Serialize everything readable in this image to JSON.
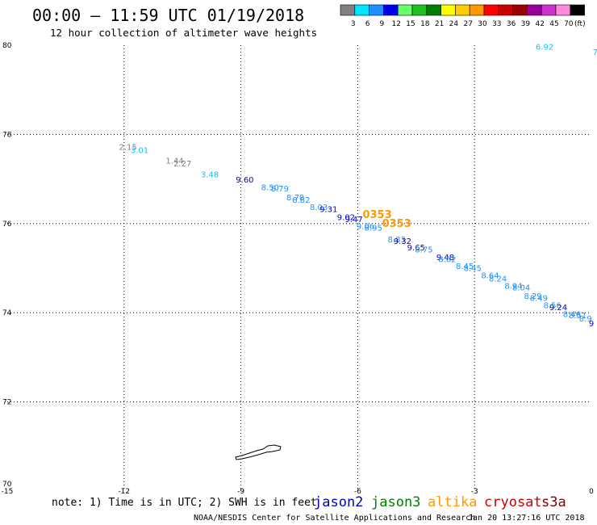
{
  "header": {
    "title": "00:00 – 11:59 UTC 01/19/2018",
    "subtitle": "12 hour collection of altimeter wave heights"
  },
  "colorbar": {
    "unit": "(ft)",
    "segments": [
      {
        "color": "#808080",
        "label": "3"
      },
      {
        "color": "#00e5ff",
        "label": "6"
      },
      {
        "color": "#1e90ff",
        "label": "9"
      },
      {
        "color": "#0000ee",
        "label": "12"
      },
      {
        "color": "#66ff66",
        "label": "15"
      },
      {
        "color": "#22c022",
        "label": "18"
      },
      {
        "color": "#008000",
        "label": "21"
      },
      {
        "color": "#ffff00",
        "label": "24"
      },
      {
        "color": "#ffcc00",
        "label": "27"
      },
      {
        "color": "#ff9900",
        "label": "30"
      },
      {
        "color": "#ff0000",
        "label": "33"
      },
      {
        "color": "#cc0000",
        "label": "36"
      },
      {
        "color": "#990000",
        "label": "39"
      },
      {
        "color": "#990099",
        "label": "42"
      },
      {
        "color": "#cc33cc",
        "label": "45"
      },
      {
        "color": "#ff88dd",
        "label": "70"
      },
      {
        "color": "#000000",
        "label": ""
      }
    ]
  },
  "chart_data": {
    "type": "scatter",
    "xlim": [
      -15,
      0
    ],
    "ylim": [
      70,
      80
    ],
    "x_ticks": [
      -15,
      -12,
      -9,
      -6,
      -3,
      0
    ],
    "y_ticks": [
      70,
      72,
      74,
      76,
      78,
      80
    ],
    "x_tick_labels": [
      "-15",
      "-12",
      "-9",
      "-6",
      "-3",
      "0"
    ],
    "y_tick_labels": [
      "70",
      "72",
      "74",
      "76",
      "78",
      "80"
    ],
    "grid": true,
    "points": [
      {
        "lon": -11.9,
        "lat": 77.65,
        "value": "2.15",
        "color": "#808080"
      },
      {
        "lon": -11.6,
        "lat": 77.58,
        "value": "3.01",
        "color": "#00c8ff"
      },
      {
        "lon": -10.7,
        "lat": 77.35,
        "value": "1.44",
        "color": "#808080"
      },
      {
        "lon": -10.5,
        "lat": 77.28,
        "value": "2.27",
        "color": "#808080"
      },
      {
        "lon": -9.8,
        "lat": 77.04,
        "value": "3.48",
        "color": "#00c8ff"
      },
      {
        "lon": -8.9,
        "lat": 76.92,
        "value": "9.60",
        "color": "#0000cc"
      },
      {
        "lon": -8.25,
        "lat": 76.75,
        "value": "8.50",
        "color": "#1e90ff"
      },
      {
        "lon": -8.0,
        "lat": 76.72,
        "value": "8.79",
        "color": "#1e90ff"
      },
      {
        "lon": -7.6,
        "lat": 76.52,
        "value": "8.78",
        "color": "#1e90ff"
      },
      {
        "lon": -7.45,
        "lat": 76.47,
        "value": "8.82",
        "color": "#1e90ff"
      },
      {
        "lon": -7.0,
        "lat": 76.3,
        "value": "8.03",
        "color": "#1e90ff"
      },
      {
        "lon": -6.75,
        "lat": 76.26,
        "value": "9.31",
        "color": "#0000cc"
      },
      {
        "lon": -6.3,
        "lat": 76.08,
        "value": "9.02",
        "color": "#0000cc"
      },
      {
        "lon": -6.1,
        "lat": 76.03,
        "value": "9.47",
        "color": "#0000cc"
      },
      {
        "lon": -5.8,
        "lat": 75.88,
        "value": "9.06",
        "color": "#1e90ff"
      },
      {
        "lon": -5.6,
        "lat": 75.84,
        "value": "8.95",
        "color": "#1e90ff"
      },
      {
        "lon": -5.5,
        "lat": 76.12,
        "value": "0353",
        "color": "#ff9900",
        "big": true
      },
      {
        "lon": -5.0,
        "lat": 75.92,
        "value": "0353",
        "color": "#ff9900",
        "big": true
      },
      {
        "lon": -5.0,
        "lat": 75.58,
        "value": "8.83",
        "color": "#1e90ff"
      },
      {
        "lon": -4.85,
        "lat": 75.54,
        "value": "9.32",
        "color": "#0000cc"
      },
      {
        "lon": -4.5,
        "lat": 75.4,
        "value": "9.65",
        "color": "#0000cc"
      },
      {
        "lon": -4.3,
        "lat": 75.35,
        "value": "8.75",
        "color": "#1e90ff"
      },
      {
        "lon": -3.75,
        "lat": 75.18,
        "value": "9.48",
        "color": "#0000cc"
      },
      {
        "lon": -3.7,
        "lat": 75.14,
        "value": "8.62",
        "color": "#1e90ff"
      },
      {
        "lon": -3.25,
        "lat": 74.98,
        "value": "8.45",
        "color": "#1e90ff"
      },
      {
        "lon": -3.05,
        "lat": 74.94,
        "value": "8.45",
        "color": "#1e90ff"
      },
      {
        "lon": -2.6,
        "lat": 74.77,
        "value": "8.64",
        "color": "#1e90ff"
      },
      {
        "lon": -2.4,
        "lat": 74.7,
        "value": "8.24",
        "color": "#1e90ff"
      },
      {
        "lon": -2.0,
        "lat": 74.54,
        "value": "8.94",
        "color": "#1e90ff"
      },
      {
        "lon": -1.8,
        "lat": 74.5,
        "value": "8.04",
        "color": "#1e90ff"
      },
      {
        "lon": -1.5,
        "lat": 74.31,
        "value": "8.29",
        "color": "#1e90ff"
      },
      {
        "lon": -1.35,
        "lat": 74.27,
        "value": "8.49",
        "color": "#1e90ff"
      },
      {
        "lon": -1.0,
        "lat": 74.1,
        "value": "8.56",
        "color": "#1e90ff"
      },
      {
        "lon": -0.85,
        "lat": 74.06,
        "value": "9.24",
        "color": "#0000cc"
      },
      {
        "lon": -0.5,
        "lat": 73.9,
        "value": "8.46",
        "color": "#1e90ff"
      },
      {
        "lon": -0.35,
        "lat": 73.88,
        "value": "8.51",
        "color": "#1e90ff"
      },
      {
        "lon": -0.15,
        "lat": 73.8,
        "value": "8.9",
        "color": "#1e90ff"
      },
      {
        "lon": 0.0,
        "lat": 73.7,
        "value": "9",
        "color": "#0000cc"
      },
      {
        "lon": -1.2,
        "lat": 79.9,
        "value": "6.92",
        "color": "#00c8ff"
      },
      {
        "lon": 0.1,
        "lat": 79.78,
        "value": "7",
        "color": "#00c8ff"
      }
    ]
  },
  "footer": {
    "note": "note: 1) Time is in UTC; 2) SWH is in feet",
    "satellites": [
      {
        "name": "jason2",
        "color": "#0000cc"
      },
      {
        "name": "jason3",
        "color": "#008000"
      },
      {
        "name": "altika",
        "color": "#ff9900"
      },
      {
        "name": "cryosat",
        "color": "#cc0000"
      },
      {
        "name": "s3a",
        "color": "#800000"
      }
    ],
    "credit": "NOAA/NESDIS Center for Satellite Applications and Research",
    "timestamp": "Jan 20 13:27:16 UTC 2018"
  }
}
